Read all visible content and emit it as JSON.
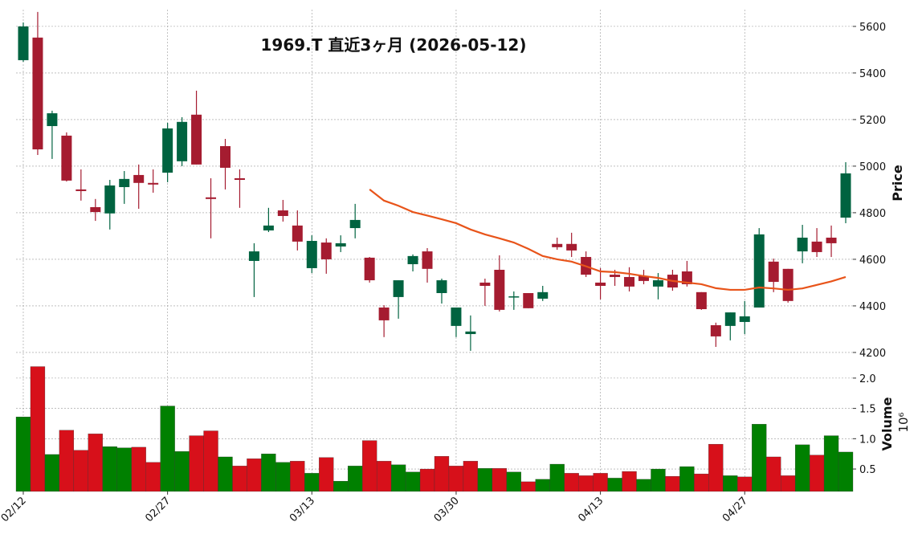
{
  "chart_data": {
    "type": "candlestick",
    "title": "1969.T  直近3ヶ月  (2026-05-12)",
    "categories": [
      "02/12",
      null,
      null,
      null,
      null,
      null,
      null,
      null,
      null,
      null,
      "02/27",
      null,
      null,
      null,
      null,
      null,
      null,
      null,
      null,
      null,
      "03/13",
      null,
      null,
      null,
      null,
      null,
      null,
      null,
      null,
      null,
      "03/30",
      null,
      null,
      null,
      null,
      null,
      null,
      null,
      null,
      null,
      "04/13",
      null,
      null,
      null,
      null,
      null,
      null,
      null,
      null,
      null,
      "04/27",
      null,
      null,
      null,
      null,
      null,
      null,
      null
    ],
    "open": [
      5455,
      5552,
      5172,
      5131,
      4900,
      4824,
      4797,
      4910,
      4962,
      4928,
      4972,
      5021,
      5221,
      4866,
      5086,
      4948,
      4593,
      4724,
      4810,
      4745,
      4562,
      4672,
      4655,
      4734,
      4607,
      4393,
      4438,
      4579,
      4634,
      4455,
      4314,
      4279,
      4500,
      4555,
      4438,
      4455,
      4431,
      4666,
      4666,
      4610,
      4500,
      4534,
      4524,
      4528,
      4483,
      4534,
      4548,
      4459,
      4317,
      4314,
      4331,
      4393,
      4590,
      4559,
      4634,
      4676,
      4693,
      4779
    ],
    "high": [
      5617,
      5662,
      5238,
      5145,
      4986,
      4859,
      4941,
      4979,
      5007,
      4986,
      5186,
      5210,
      5324,
      4948,
      5117,
      4986,
      4669,
      4821,
      4855,
      4810,
      4703,
      4690,
      4703,
      4838,
      4610,
      4403,
      4510,
      4621,
      4648,
      4517,
      4393,
      4359,
      4517,
      4617,
      4462,
      4455,
      4486,
      4693,
      4714,
      4634,
      4562,
      4555,
      4566,
      4555,
      4541,
      4555,
      4593,
      4459,
      4328,
      4372,
      4421,
      4734,
      4603,
      4559,
      4748,
      4734,
      4745,
      5017
    ],
    "low": [
      5448,
      5048,
      5031,
      4934,
      4852,
      4765,
      4728,
      4838,
      4817,
      4886,
      4931,
      5000,
      5007,
      4690,
      4900,
      4821,
      4438,
      4717,
      4762,
      4638,
      4541,
      4538,
      4631,
      4690,
      4500,
      4266,
      4345,
      4548,
      4500,
      4410,
      4266,
      4207,
      4400,
      4376,
      4383,
      4390,
      4421,
      4641,
      4610,
      4524,
      4428,
      4486,
      4462,
      4493,
      4428,
      4465,
      4483,
      4383,
      4224,
      4252,
      4279,
      4393,
      4459,
      4414,
      4583,
      4610,
      4610,
      4755
    ],
    "close": [
      5600,
      5072,
      5227,
      4938,
      4893,
      4803,
      4917,
      4945,
      4928,
      4921,
      5162,
      5190,
      5007,
      4859,
      4993,
      4941,
      4634,
      4745,
      4786,
      4676,
      4679,
      4600,
      4669,
      4769,
      4510,
      4338,
      4510,
      4614,
      4559,
      4510,
      4393,
      4290,
      4486,
      4383,
      4441,
      4390,
      4459,
      4652,
      4638,
      4534,
      4486,
      4524,
      4483,
      4507,
      4510,
      4479,
      4493,
      4386,
      4269,
      4372,
      4355,
      4707,
      4503,
      4421,
      4693,
      4631,
      4669,
      4969
    ],
    "ma": {
      "color": "#e8541a",
      "values": [
        null,
        null,
        null,
        null,
        null,
        null,
        null,
        null,
        null,
        null,
        null,
        null,
        null,
        null,
        null,
        null,
        null,
        null,
        null,
        null,
        null,
        null,
        null,
        null,
        4900,
        4852,
        4830,
        4803,
        4788,
        4772,
        4755,
        4728,
        4707,
        4690,
        4672,
        4645,
        4614,
        4600,
        4590,
        4570,
        4548,
        4545,
        4538,
        4528,
        4520,
        4507,
        4500,
        4493,
        4476,
        4469,
        4469,
        4479,
        4475,
        4469,
        4475,
        4490,
        4505,
        4524
      ]
    },
    "up_color": "#006340",
    "down_color": "#a51c30",
    "ylabel": "Price",
    "ylim": [
      4155,
      5672
    ],
    "yticks": [
      4200,
      4400,
      4600,
      4800,
      5000,
      5200,
      5400,
      5600
    ],
    "grid": true,
    "volume": {
      "values": [
        1.36,
        2.19,
        0.74,
        1.14,
        0.81,
        1.08,
        0.87,
        0.85,
        0.86,
        0.61,
        1.54,
        0.79,
        1.05,
        1.13,
        0.7,
        0.55,
        0.67,
        0.75,
        0.61,
        0.63,
        0.43,
        0.69,
        0.3,
        0.55,
        0.97,
        0.63,
        0.57,
        0.45,
        0.5,
        0.71,
        0.55,
        0.63,
        0.51,
        0.51,
        0.45,
        0.29,
        0.33,
        0.58,
        0.43,
        0.39,
        0.43,
        0.35,
        0.46,
        0.33,
        0.5,
        0.38,
        0.54,
        0.42,
        0.91,
        0.39,
        0.37,
        1.24,
        0.7,
        0.39,
        0.9,
        0.73,
        1.05,
        0.78
      ],
      "up_color": "#008000",
      "down_color": "#d7101a",
      "ylabel": "Volume",
      "scale_label": "10⁶",
      "ylim": [
        0.13,
        2.25
      ],
      "yticks": [
        0.5,
        {
          "value": 1,
          "label": "1.0"
        },
        1.5,
        {
          "value": 2,
          "label": "2.0"
        }
      ]
    }
  }
}
